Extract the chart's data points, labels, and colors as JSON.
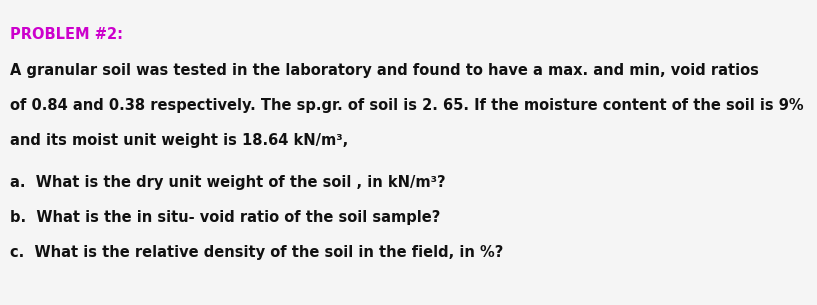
{
  "title": "PROBLEM #2:",
  "title_color": "#cc00cc",
  "title_fontsize": 10.5,
  "body_fontsize": 10.5,
  "background_color": "#f5f5f5",
  "text_color": "#111111",
  "line1": "A granular soil was tested in the laboratory and found to have a max. and min, void ratios",
  "line2": "of 0.84 and 0.38 respectively. The sp.gr. of soil is 2. 65. If the moisture content of the soil is 9%",
  "line3": "and its moist unit weight is 18.64 kN/m³,",
  "line4": "a.  What is the dry unit weight of the soil , in kN/m³?",
  "line5": "b.  What is the in situ- void ratio of the soil sample?",
  "line6": "c.  What is the relative density of the soil in the field, in %?",
  "figwidth": 8.17,
  "figheight": 3.05,
  "dpi": 100
}
